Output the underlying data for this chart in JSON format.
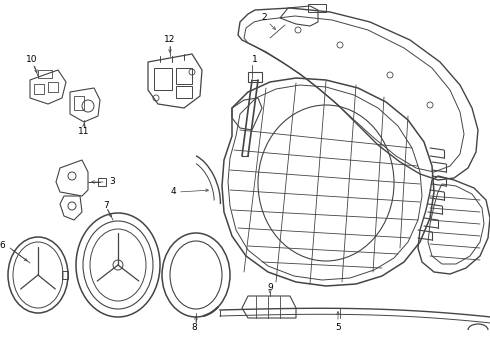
{
  "bg_color": "#ffffff",
  "line_color": "#444444",
  "text_color": "#000000",
  "fig_width": 4.9,
  "fig_height": 3.6,
  "dpi": 100
}
